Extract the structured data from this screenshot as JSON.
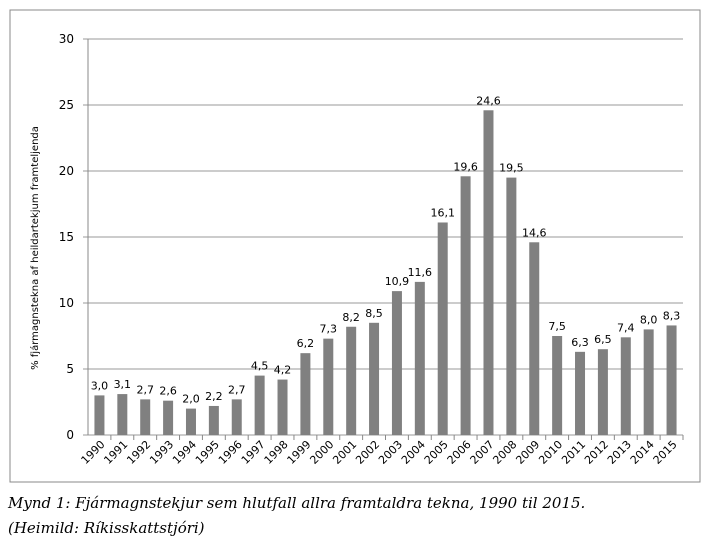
{
  "chart_data": {
    "type": "bar",
    "y_label": "% fjármagnstekna af heildartekjum framteljenda",
    "categories": [
      "1990",
      "1991",
      "1992",
      "1993",
      "1994",
      "1995",
      "1996",
      "1997",
      "1998",
      "1999",
      "2000",
      "2001",
      "2002",
      "2003",
      "2004",
      "2005",
      "2006",
      "2007",
      "2008",
      "2009",
      "2010",
      "2011",
      "2012",
      "2013",
      "2014",
      "2015"
    ],
    "values": [
      3.0,
      3.1,
      2.7,
      2.6,
      2.0,
      2.2,
      2.7,
      4.5,
      4.2,
      6.2,
      7.3,
      8.2,
      8.5,
      10.9,
      11.6,
      16.1,
      19.6,
      24.6,
      19.5,
      14.6,
      7.5,
      6.3,
      6.5,
      7.4,
      8.0,
      8.3
    ],
    "value_labels": [
      "3,0",
      "3,1",
      "2,7",
      "2,6",
      "2,0",
      "2,2",
      "2,7",
      "4,5",
      "4,2",
      "6,2",
      "7,3",
      "8,2",
      "8,5",
      "10,9",
      "11,6",
      "16,1",
      "19,6",
      "24,6",
      "19,5",
      "14,6",
      "7,5",
      "6,3",
      "6,5",
      "7,4",
      "8,0",
      "8,3"
    ],
    "color": "#808080",
    "ylim": [
      0,
      30
    ],
    "yticks": [
      0,
      5,
      10,
      15,
      20,
      25,
      30
    ],
    "grid": true,
    "caption": [
      "Mynd 1: Fjármagnstekjur sem hlutfall allra framtaldra tekna, 1990 til 2015.",
      "(Heimild: Ríkisskattstjóri)"
    ]
  }
}
